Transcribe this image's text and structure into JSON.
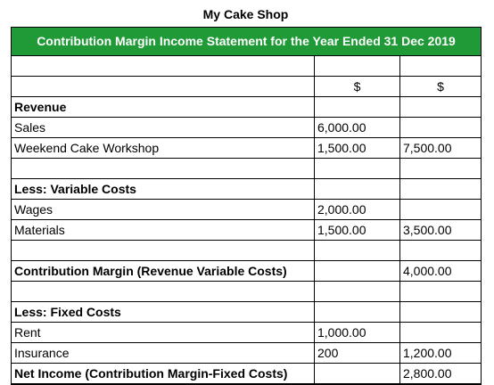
{
  "shop_title": "My Cake Shop",
  "statement_title": "Contribution Margin Income Statement for the Year Ended 31 Dec 2019",
  "currency_headers": [
    "$",
    "$"
  ],
  "colors": {
    "banner": "#1f9a37",
    "banner_text": "#ffffff"
  },
  "rows": [
    {
      "label": "",
      "col1": "",
      "col2": ""
    },
    {
      "label": "",
      "col1": "$",
      "col2": "$"
    },
    {
      "label": "Revenue",
      "col1": "",
      "col2": "",
      "bold": true
    },
    {
      "label": "Sales",
      "col1": "6,000.00",
      "col2": ""
    },
    {
      "label": "Weekend Cake Workshop",
      "col1": "1,500.00",
      "col2": "7,500.00"
    },
    {
      "label": "",
      "col1": "",
      "col2": ""
    },
    {
      "label": "Less: Variable Costs",
      "col1": "",
      "col2": "",
      "bold": true
    },
    {
      "label": "Wages",
      "col1": "2,000.00",
      "col2": ""
    },
    {
      "label": "Materials",
      "col1": "1,500.00",
      "col2": "3,500.00"
    },
    {
      "label": "",
      "col1": "",
      "col2": ""
    },
    {
      "label": "Contribution Margin (Revenue Variable Costs)",
      "col1": "",
      "col2": "4,000.00",
      "bold": true
    },
    {
      "label": "",
      "col1": "",
      "col2": ""
    },
    {
      "label": "Less: Fixed Costs",
      "col1": "",
      "col2": "",
      "bold": true
    },
    {
      "label": "Rent",
      "col1": "1,000.00",
      "col2": ""
    },
    {
      "label": "Insurance",
      "col1": "200",
      "col2": "1,200.00"
    },
    {
      "label": "Net Income (Contribution Margin-Fixed Costs)",
      "col1": "",
      "col2": "2,800.00",
      "bold": true
    }
  ]
}
